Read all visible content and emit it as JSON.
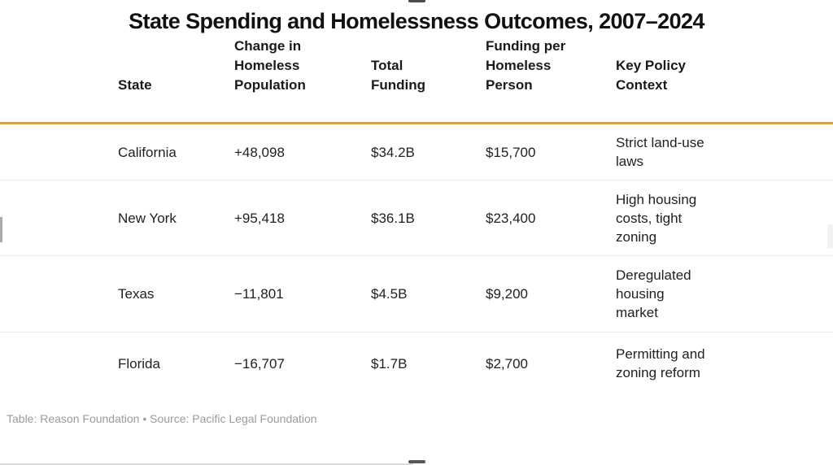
{
  "accent_color": "#E59A3C",
  "chart_data": {
    "type": "table",
    "title": "State Spending and Homelessness Outcomes, 2007–2024",
    "columns": [
      "State",
      "Change in Homeless Population",
      "Total Funding",
      "Funding per Homeless Person",
      "Key Policy Context"
    ],
    "rows": [
      [
        "California",
        "+48,098",
        "$34.2B",
        "$15,700",
        "Strict land-use\nlaws"
      ],
      [
        "New York",
        "+95,418",
        "$36.1B",
        "$23,400",
        "High housing\ncosts, tight\nzoning"
      ],
      [
        "Texas",
        "−11,801",
        "$4.5B",
        "$9,200",
        "Deregulated\nhousing\nmarket"
      ],
      [
        "Florida",
        "−16,707",
        "$1.7B",
        "$2,700",
        "Permitting and\nzoning reform"
      ]
    ],
    "rows_numeric": {
      "change_in_homeless_population": [
        48098,
        95418,
        -11801,
        -16707
      ],
      "total_funding_billions_usd": [
        34.2,
        36.1,
        4.5,
        1.7
      ],
      "funding_per_homeless_person_usd": [
        15700,
        23400,
        9200,
        2700
      ]
    },
    "source": "Table: Reason Foundation • Source: Pacific Legal Foundation",
    "legend_position": "none",
    "grid": "horizontal-row-dividers"
  }
}
